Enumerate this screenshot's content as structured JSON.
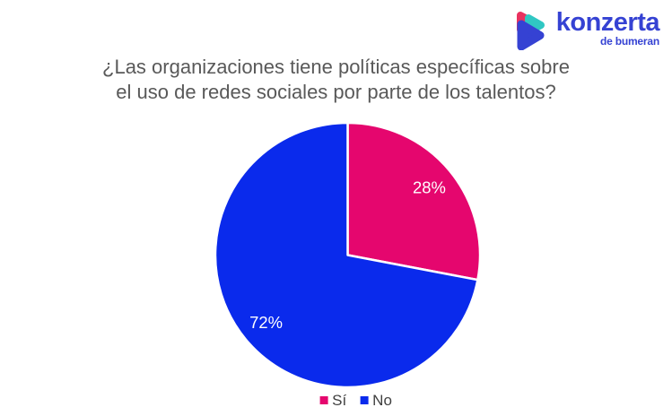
{
  "logo": {
    "brand": "konzerta",
    "tagline": "de bumeran",
    "wordmark_color": "#3542D3",
    "icon_colors": {
      "pink": "#E9325F",
      "teal": "#30C7C3",
      "blue": "#3542D3"
    }
  },
  "title": {
    "line1": "¿Las organizaciones tiene políticas específicas sobre",
    "line2": "el uso de redes sociales por parte de los talentos?",
    "color": "#595959"
  },
  "chart_data": {
    "type": "pie",
    "title": "¿Las organizaciones tiene políticas específicas sobre el uso de redes sociales por parte de los talentos?",
    "categories": [
      "Sí",
      "No"
    ],
    "values": [
      28,
      72
    ],
    "labels": [
      "28%",
      "72%"
    ],
    "colors": [
      "#E5066E",
      "#0A2AEC"
    ],
    "label_color": "#FFFFFF",
    "start_angle": "top",
    "direction": "clockwise",
    "legend_position": "bottom"
  }
}
